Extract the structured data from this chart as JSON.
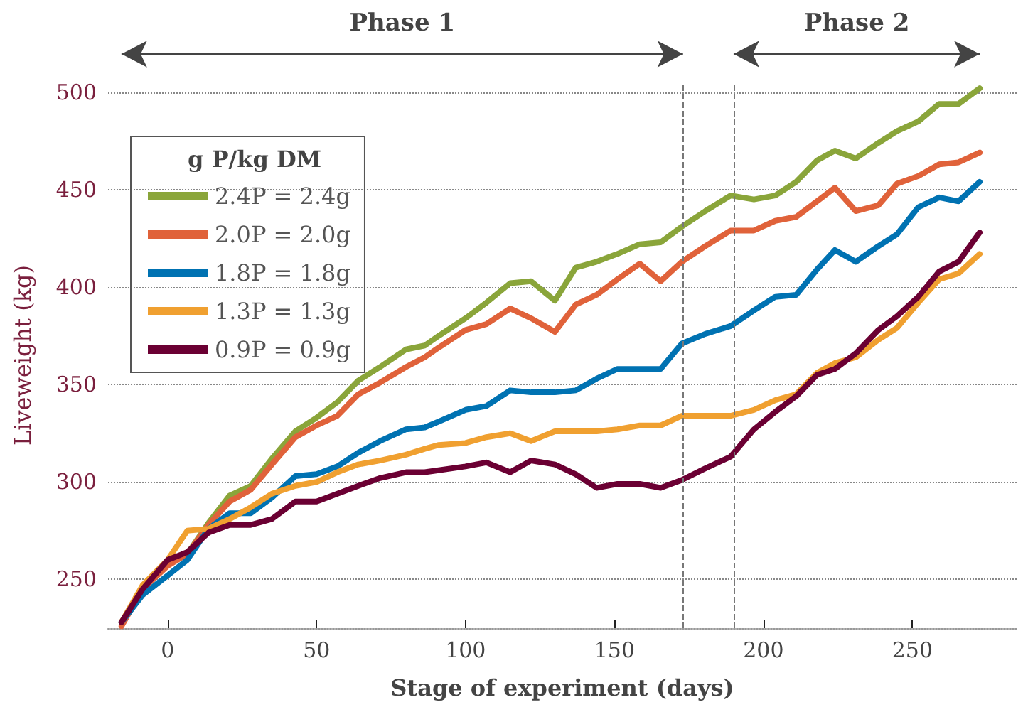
{
  "chart_data": {
    "type": "line",
    "xlabel": "Stage of experiment (days)",
    "ylabel": "Liveweight (kg)",
    "legend_title": "g P/kg DM",
    "legend": "top left",
    "grid": "y",
    "marker": "none",
    "line_style": "solid",
    "xlim": [
      -20,
      285
    ],
    "ylim": [
      225,
      505
    ],
    "xticks": [
      0,
      50,
      100,
      150,
      200,
      250
    ],
    "yticks": [
      250,
      300,
      350,
      400,
      450,
      500
    ],
    "x": [
      -15.5,
      -8.4,
      0,
      6.6,
      13.7,
      20.8,
      27.9,
      35,
      42.9,
      50,
      57,
      64,
      71.3,
      80,
      86.3,
      91,
      100,
      107,
      115,
      122,
      130,
      137,
      144,
      151,
      158.5,
      165.5,
      172.6,
      180.5,
      189,
      196.8,
      204,
      211,
      218,
      224,
      231,
      238.6,
      244.8,
      252,
      259,
      265.5,
      272.6
    ],
    "series": [
      {
        "name": "2.4P = 2.4g",
        "color": "#8aa53a",
        "values": [
          null,
          null,
          258,
          263,
          279,
          293,
          298,
          312,
          326,
          333,
          341,
          352,
          359,
          368,
          370,
          375,
          384,
          392,
          402,
          403,
          393,
          410,
          413,
          417,
          422,
          423,
          431,
          439,
          447,
          445,
          447,
          454,
          465,
          470,
          466,
          474,
          480,
          485,
          494,
          494,
          502
        ]
      },
      {
        "name": "2.0P = 2.0g",
        "color": "#e0623a",
        "values": [
          226,
          245,
          257,
          263,
          278,
          290,
          296,
          309,
          323,
          329,
          334,
          345,
          351,
          359,
          364,
          369,
          378,
          381,
          389,
          384,
          377,
          391,
          396,
          404,
          412,
          403,
          413,
          421,
          429,
          429,
          434,
          436,
          444,
          451,
          439,
          442,
          453,
          457,
          463,
          464,
          469
        ]
      },
      {
        "name": "1.8P = 1.8g",
        "color": "#0072b2",
        "values": [
          228,
          242,
          252,
          260,
          276,
          284,
          284,
          292,
          303,
          304,
          308,
          315,
          321,
          327,
          328,
          331,
          337,
          339,
          347,
          346,
          346,
          347,
          353,
          358,
          358,
          358,
          371,
          376,
          380,
          388,
          395,
          396,
          409,
          419,
          413,
          421,
          427,
          441,
          446,
          444,
          454
        ]
      },
      {
        "name": "1.3P = 1.3g",
        "color": "#f0a030",
        "values": [
          228,
          247,
          260,
          275,
          276,
          281,
          287,
          294,
          298,
          300,
          305,
          309,
          311,
          314,
          317,
          319,
          320,
          323,
          325,
          321,
          326,
          326,
          326,
          327,
          329,
          329,
          334,
          334,
          334,
          337,
          342,
          345,
          356,
          361,
          364,
          373,
          379,
          392,
          404,
          407,
          417
        ]
      },
      {
        "name": "0.9P = 0.9g",
        "color": "#6b0033",
        "values": [
          228,
          245,
          260,
          264,
          274,
          278,
          278,
          281,
          290,
          290,
          294,
          298,
          302,
          305,
          305,
          306,
          308,
          310,
          305,
          311,
          309,
          304,
          297,
          299,
          299,
          297,
          301,
          307,
          313,
          327,
          336,
          344,
          355,
          358,
          366,
          378,
          385,
          395,
          408,
          413,
          428
        ]
      }
    ],
    "ref_lines": [
      {
        "axis": "x",
        "value": 173,
        "line_style": "dashed"
      },
      {
        "axis": "x",
        "value": 190,
        "line_style": "dashed"
      }
    ],
    "annotations": [
      "Phase 1",
      "Phase 2"
    ]
  }
}
